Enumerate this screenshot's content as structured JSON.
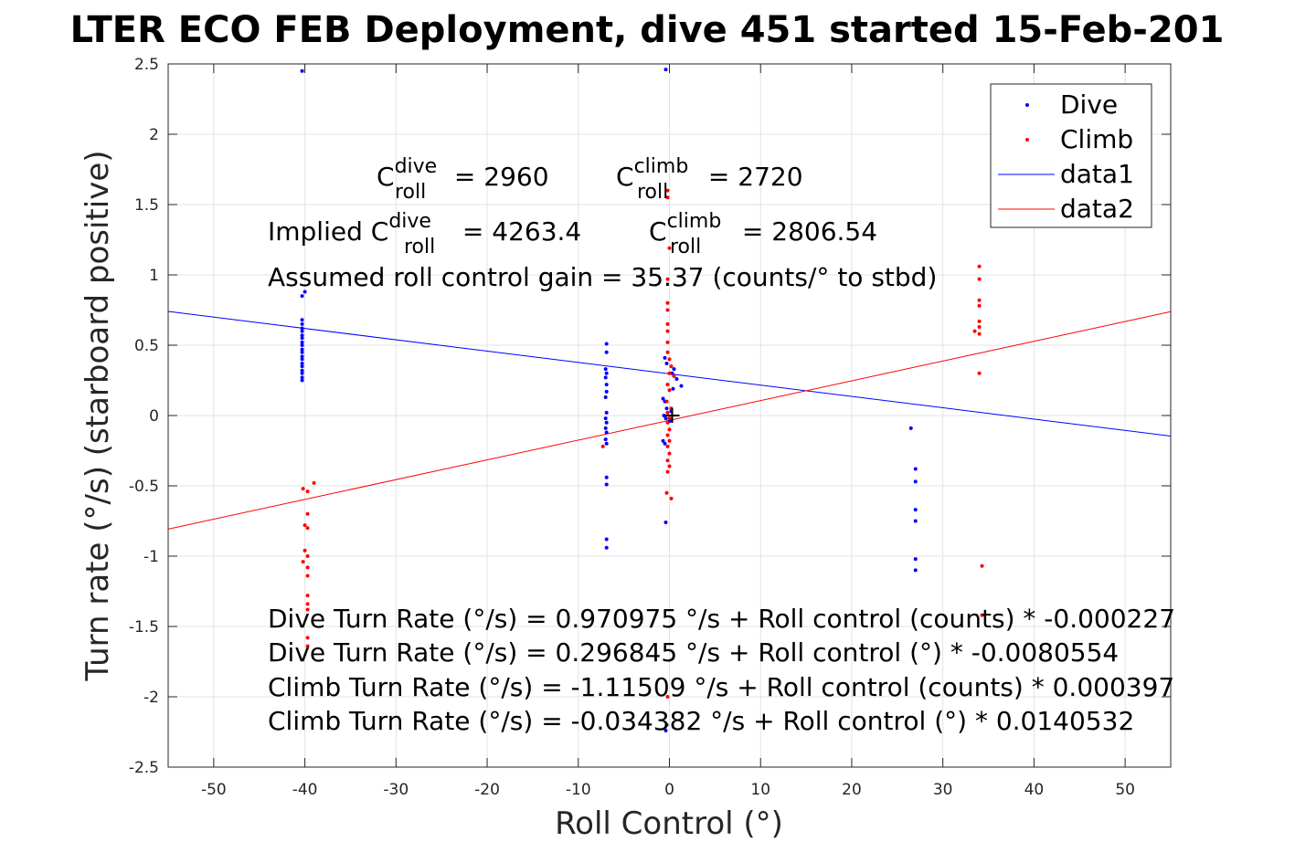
{
  "chart_data": {
    "type": "scatter",
    "title": "LTER ECO FEB Deployment, dive 451 started 15-Feb-201",
    "xlabel": "Roll Control (°)",
    "ylabel": "Turn rate (°/s) (starboard positive)",
    "xlim": [
      -55,
      55
    ],
    "ylim": [
      -2.5,
      2.5
    ],
    "xticks": [
      -50,
      -40,
      -30,
      -20,
      -10,
      0,
      10,
      20,
      30,
      40,
      50
    ],
    "yticks": [
      -2.5,
      -2,
      -1.5,
      -1,
      -0.5,
      0,
      0.5,
      1,
      1.5,
      2,
      2.5
    ],
    "xtick_labels": [
      "-50",
      "-40",
      "-30",
      "-20",
      "-10",
      "0",
      "10",
      "20",
      "30",
      "40",
      "50"
    ],
    "ytick_labels": [
      "-2.5",
      "-2",
      "-1.5",
      "-1",
      "-0.5",
      "0",
      "0.5",
      "1",
      "1.5",
      "2",
      "2.5"
    ],
    "grid": true,
    "legend_position": "top-right",
    "series": [
      {
        "name": "Dive",
        "kind": "scatter",
        "color": "#0000ff",
        "points": [
          [
            -40.3,
            2.45
          ],
          [
            -40.3,
            0.85
          ],
          [
            -40.0,
            0.88
          ],
          [
            -40.3,
            0.68
          ],
          [
            -40.3,
            0.65
          ],
          [
            -40.3,
            0.62
          ],
          [
            -40.3,
            0.6
          ],
          [
            -40.3,
            0.57
          ],
          [
            -40.3,
            0.55
          ],
          [
            -40.3,
            0.52
          ],
          [
            -40.3,
            0.5
          ],
          [
            -40.3,
            0.47
          ],
          [
            -40.3,
            0.45
          ],
          [
            -40.3,
            0.42
          ],
          [
            -40.3,
            0.4
          ],
          [
            -40.3,
            0.37
          ],
          [
            -40.3,
            0.35
          ],
          [
            -40.3,
            0.32
          ],
          [
            -40.3,
            0.3
          ],
          [
            -40.3,
            0.27
          ],
          [
            -40.3,
            0.25
          ],
          [
            -6.9,
            0.51
          ],
          [
            -6.9,
            0.45
          ],
          [
            -7.0,
            0.33
          ],
          [
            -6.9,
            0.3
          ],
          [
            -7.0,
            0.27
          ],
          [
            -6.9,
            0.22
          ],
          [
            -6.9,
            0.17
          ],
          [
            -7.0,
            0.13
          ],
          [
            -6.9,
            0.02
          ],
          [
            -7.0,
            -0.02
          ],
          [
            -6.9,
            -0.05
          ],
          [
            -7.0,
            -0.09
          ],
          [
            -6.9,
            -0.12
          ],
          [
            -7.0,
            -0.17
          ],
          [
            -6.9,
            -0.2
          ],
          [
            -6.9,
            -0.44
          ],
          [
            -6.9,
            -0.49
          ],
          [
            -6.9,
            -0.88
          ],
          [
            -6.9,
            -0.94
          ],
          [
            -0.4,
            2.46
          ],
          [
            -0.5,
            0.41
          ],
          [
            -0.3,
            0.37
          ],
          [
            0.5,
            0.33
          ],
          [
            0.3,
            0.3
          ],
          [
            0.8,
            0.26
          ],
          [
            1.3,
            0.21
          ],
          [
            0.4,
            0.19
          ],
          [
            -0.7,
            0.12
          ],
          [
            -0.5,
            0.1
          ],
          [
            -0.3,
            0.05
          ],
          [
            0.2,
            0.03
          ],
          [
            -0.6,
            0.0
          ],
          [
            -0.4,
            -0.02
          ],
          [
            0.0,
            -0.04
          ],
          [
            -0.7,
            -0.18
          ],
          [
            -0.5,
            -0.2
          ],
          [
            -0.4,
            -0.76
          ],
          [
            -0.3,
            -2.2
          ],
          [
            -0.4,
            -2.24
          ],
          [
            26.5,
            -0.09
          ],
          [
            27.0,
            -0.38
          ],
          [
            27.0,
            -0.47
          ],
          [
            27.0,
            -0.67
          ],
          [
            27.0,
            -0.75
          ],
          [
            27.0,
            -1.02
          ],
          [
            27.0,
            -1.1
          ]
        ]
      },
      {
        "name": "Climb",
        "kind": "scatter",
        "color": "#ff0000",
        "points": [
          [
            -0.2,
            1.6
          ],
          [
            -0.2,
            1.55
          ],
          [
            0.0,
            1.19
          ],
          [
            -0.2,
            0.97
          ],
          [
            -0.2,
            0.8
          ],
          [
            -0.2,
            0.75
          ],
          [
            -0.2,
            0.65
          ],
          [
            -0.2,
            0.6
          ],
          [
            -0.2,
            0.52
          ],
          [
            -0.2,
            0.45
          ],
          [
            0.0,
            0.4
          ],
          [
            0.2,
            0.35
          ],
          [
            0.0,
            0.3
          ],
          [
            0.5,
            0.28
          ],
          [
            -0.2,
            0.22
          ],
          [
            0.0,
            0.18
          ],
          [
            -0.3,
            0.1
          ],
          [
            0.2,
            0.05
          ],
          [
            -0.2,
            0.02
          ],
          [
            0.0,
            -0.02
          ],
          [
            -0.2,
            -0.05
          ],
          [
            0.0,
            -0.1
          ],
          [
            -0.2,
            -0.14
          ],
          [
            0.0,
            -0.18
          ],
          [
            -0.2,
            -0.22
          ],
          [
            0.0,
            -0.27
          ],
          [
            -0.2,
            -0.32
          ],
          [
            0.0,
            -0.36
          ],
          [
            -0.2,
            -0.4
          ],
          [
            -0.3,
            -0.55
          ],
          [
            0.2,
            -0.59
          ],
          [
            -0.2,
            -2.0
          ],
          [
            -7.3,
            -0.22
          ],
          [
            -40.2,
            -0.52
          ],
          [
            -39.7,
            -0.54
          ],
          [
            -39.0,
            -0.48
          ],
          [
            -39.7,
            -0.7
          ],
          [
            -40.0,
            -0.78
          ],
          [
            -39.7,
            -0.8
          ],
          [
            -40.0,
            -0.96
          ],
          [
            -39.7,
            -1.0
          ],
          [
            -40.2,
            -1.04
          ],
          [
            -39.7,
            -1.08
          ],
          [
            -39.7,
            -1.14
          ],
          [
            -39.7,
            -1.28
          ],
          [
            -39.7,
            -1.34
          ],
          [
            -39.7,
            -1.38
          ],
          [
            -39.7,
            -1.58
          ],
          [
            -39.7,
            -1.64
          ],
          [
            34.0,
            1.06
          ],
          [
            34.0,
            0.97
          ],
          [
            34.0,
            0.82
          ],
          [
            34.0,
            0.78
          ],
          [
            34.0,
            0.67
          ],
          [
            34.0,
            0.63
          ],
          [
            33.5,
            0.6
          ],
          [
            34.0,
            0.58
          ],
          [
            34.0,
            0.3
          ],
          [
            34.3,
            -1.07
          ],
          [
            34.3,
            -1.42
          ]
        ]
      },
      {
        "name": "data1",
        "kind": "line",
        "color": "#0000ff",
        "x": [
          -55,
          55
        ],
        "y": [
          0.7399,
          -0.1462
        ]
      },
      {
        "name": "data2",
        "kind": "line",
        "color": "#ff0000",
        "x": [
          -55,
          55
        ],
        "y": [
          -0.8073,
          0.7386
        ]
      }
    ],
    "marker": {
      "x": 0.3,
      "y": 0.0,
      "symbol": "+",
      "color": "#000000"
    },
    "annotations": {
      "c_dive": {
        "base": "C",
        "sup": "dive",
        "sub": "roll",
        "value": " = 2960"
      },
      "c_climb": {
        "base": "C",
        "sup": "climb",
        "sub": "roll",
        "value": " = 2720"
      },
      "implied_prefix": "Implied ",
      "implied_dive": {
        "base": "C",
        "sup": "dive",
        "sub": "roll",
        "value": " = 4263.4"
      },
      "implied_climb": {
        "base": "C",
        "sup": "climb",
        "sub": "roll",
        "value": " = 2806.54"
      },
      "gain": "Assumed roll control gain = 35.37 (counts/° to stbd)",
      "eq1": "Dive Turn Rate (°/s) = 0.970975 °/s + Roll control (counts) * -0.000227",
      "eq2": "Dive Turn Rate (°/s) = 0.296845 °/s + Roll control (°) * -0.0080554",
      "eq3": "Climb Turn Rate (°/s) = -1.11509 °/s + Roll control (counts) * 0.000397",
      "eq4": "Climb Turn Rate (°/s) = -0.034382 °/s + Roll control (°) * 0.0140532"
    }
  }
}
